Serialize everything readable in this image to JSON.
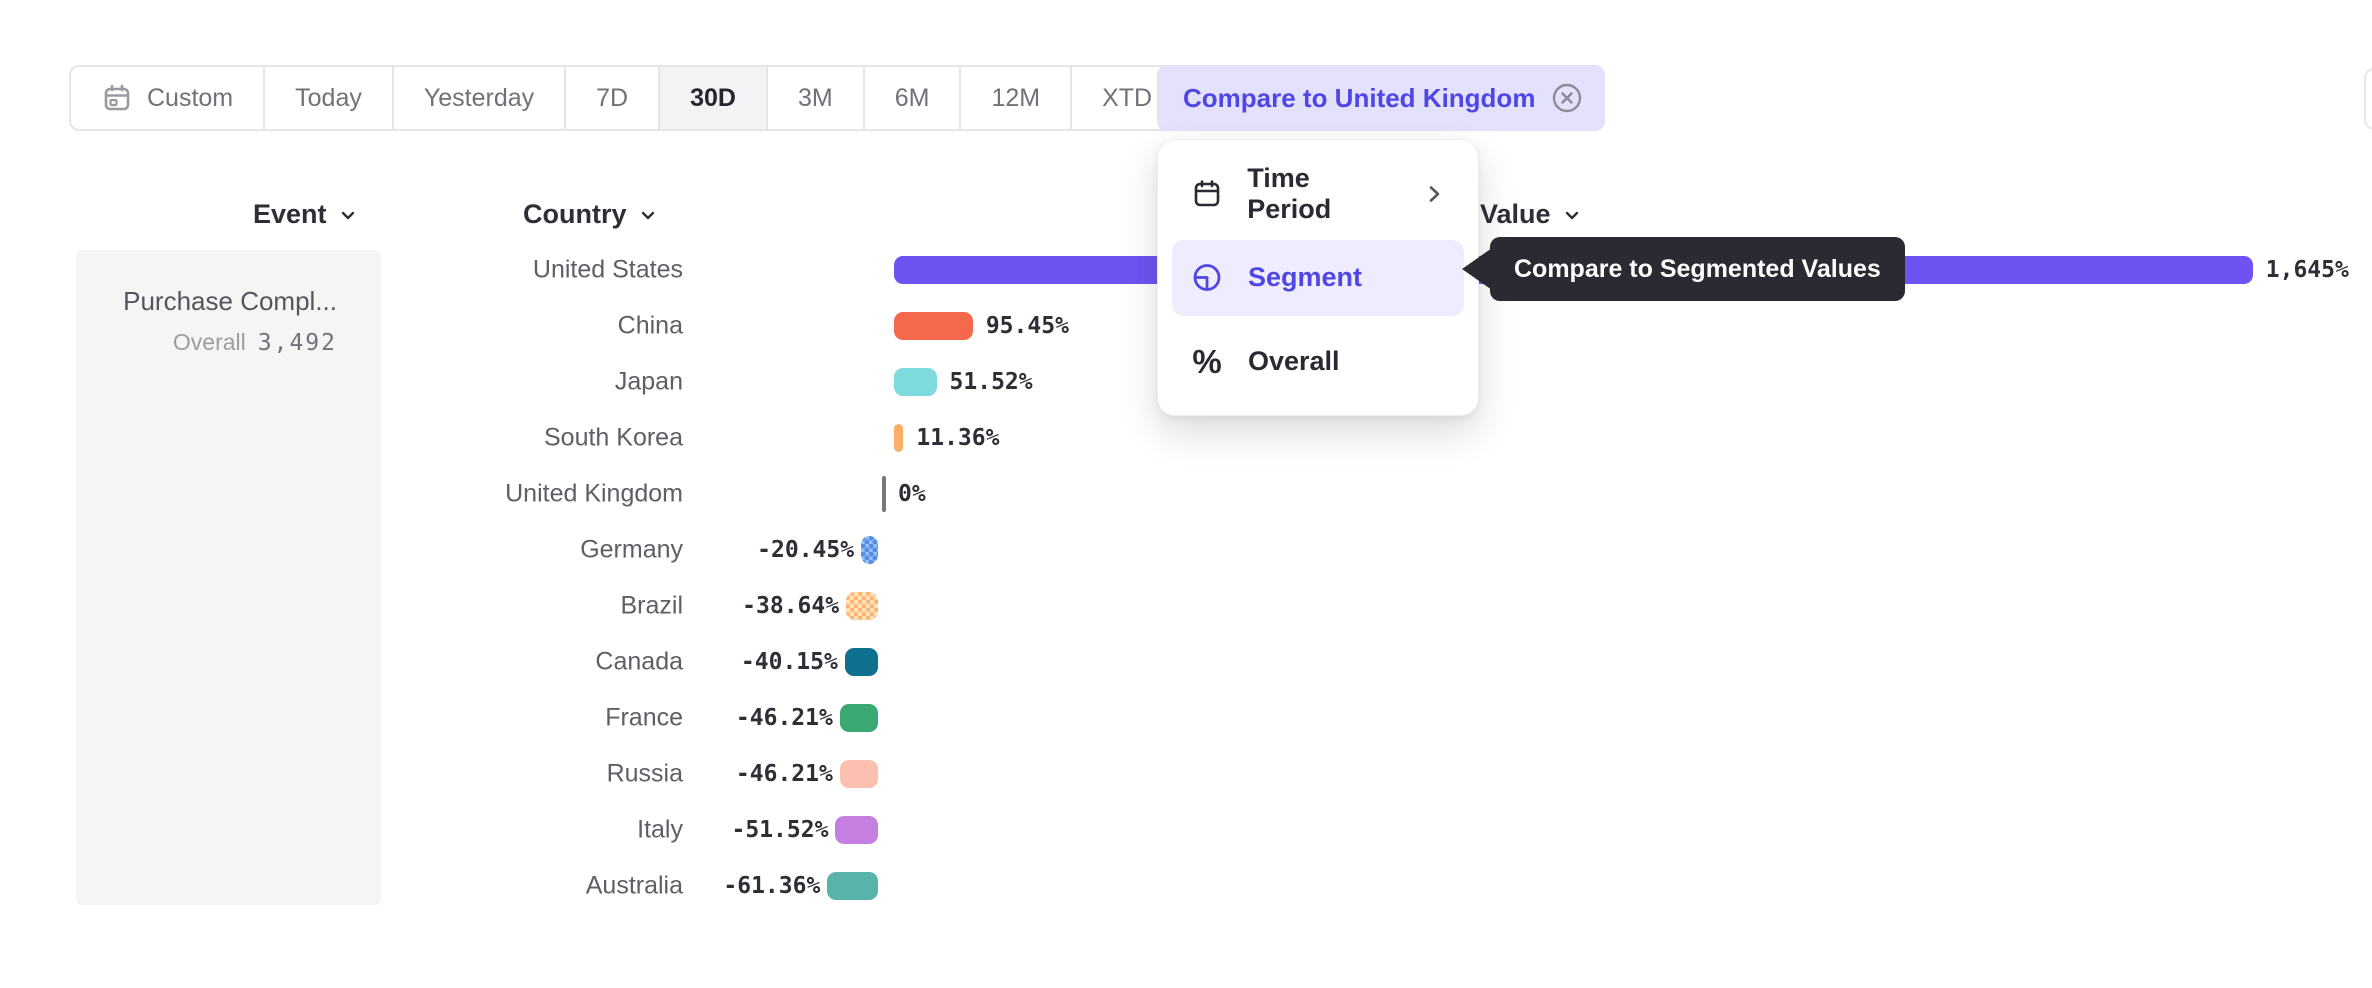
{
  "toolbar": {
    "selected": "30D",
    "segments": [
      {
        "label": "Custom",
        "icon": "calendar-icon"
      },
      {
        "label": "Today"
      },
      {
        "label": "Yesterday"
      },
      {
        "label": "7D"
      },
      {
        "label": "30D"
      },
      {
        "label": "3M"
      },
      {
        "label": "6M"
      },
      {
        "label": "12M"
      },
      {
        "label": "XTD",
        "chevron": true
      }
    ],
    "compare_chip_label": "Compare to United Kingdom"
  },
  "headers": {
    "event": "Event",
    "country": "Country",
    "value": "Value"
  },
  "event_panel": {
    "title": "Purchase Compl...",
    "overall_label": "Overall",
    "overall_value": "3,492"
  },
  "menu": {
    "items": [
      {
        "label": "Time Period",
        "icon": "calendar-icon",
        "has_submenu": true,
        "selected": false
      },
      {
        "label": "Segment",
        "icon": "segment-icon",
        "has_submenu": false,
        "selected": true
      },
      {
        "label": "Overall",
        "icon": "percent-icon",
        "has_submenu": false,
        "selected": false
      }
    ]
  },
  "tooltip": {
    "text": "Compare to Segmented Values"
  },
  "chart_data": {
    "type": "bar",
    "orientation": "horizontal",
    "title": "",
    "xlabel": "",
    "ylabel": "Country",
    "unit": "percent difference vs United Kingdom (baseline 0%)",
    "grid": false,
    "legend": false,
    "categories": [
      "United States",
      "China",
      "Japan",
      "South Korea",
      "United Kingdom",
      "Germany",
      "Brazil",
      "Canada",
      "France",
      "Russia",
      "Italy",
      "Australia"
    ],
    "values": [
      1645,
      95.45,
      51.52,
      11.36,
      0,
      -20.45,
      -38.64,
      -40.15,
      -46.21,
      -46.21,
      -51.52,
      -61.36
    ],
    "value_labels": [
      "1,645%",
      "95.45%",
      "51.52%",
      "11.36%",
      "0%",
      "-20.45%",
      "-38.64%",
      "-40.15%",
      "-46.21%",
      "-46.21%",
      "-51.52%",
      "-61.36%"
    ],
    "bar_colors": [
      "#6F53F2",
      "#F4684C",
      "#7EDADC",
      "#F9AF68",
      null,
      "#8CC7F4",
      "#FBB26C",
      "#10718F",
      "#39A873",
      "#FCC0B1",
      "#C57FE1",
      "#58B4AA"
    ],
    "dot_pattern": [
      false,
      false,
      false,
      false,
      false,
      true,
      true,
      false,
      false,
      false,
      false,
      false
    ],
    "dot_colors": [
      null,
      null,
      null,
      null,
      null,
      "#5D87E8",
      "#FCE0B8",
      null,
      null,
      null,
      null,
      null
    ],
    "xlim": [
      -100,
      1700
    ]
  },
  "colors": {
    "accent_purple": "#5046E5",
    "chip_bg": "#E3E1FB",
    "menu_highlight": "#EFEDFD",
    "tooltip_bg": "#2B2A33",
    "panel_bg": "#F5F5F6",
    "toolbar_border": "#E5E5E8",
    "baseline_tick": "#77777E",
    "text_dark": "#2F2E37",
    "text_gray": "#71717A"
  }
}
